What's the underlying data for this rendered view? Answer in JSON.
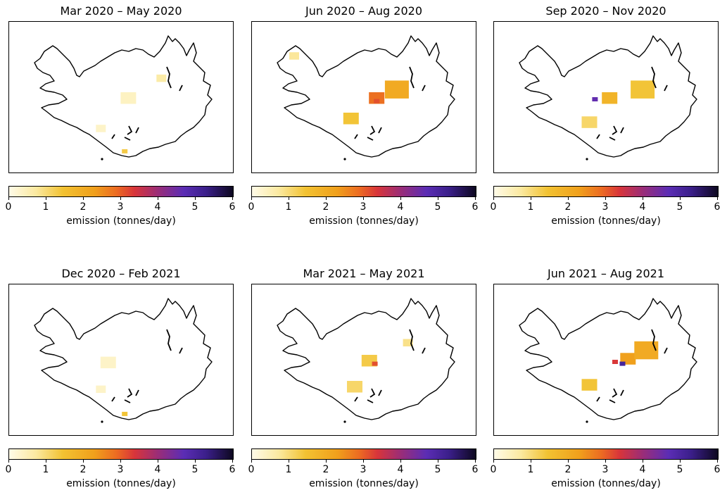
{
  "figure": {
    "colorbar": {
      "ticks": [
        "0",
        "1",
        "2",
        "3",
        "4",
        "5",
        "6"
      ],
      "label": "emission (tonnes/day)",
      "range": [
        0,
        6
      ],
      "colormap": [
        "#fffbe8",
        "#fbe9a0",
        "#f2c232",
        "#f0a01c",
        "#ec6b22",
        "#d8353a",
        "#9d2d75",
        "#5b2db5",
        "#3b1f8a",
        "#0d0820"
      ]
    },
    "panels": [
      {
        "title": "Mar 2020 – May 2020",
        "hotspots": [
          {
            "lon": -18.5,
            "lat": 64.85,
            "value": 0.35,
            "size": 2
          },
          {
            "lon": -16.7,
            "lat": 65.4,
            "value": 0.6,
            "size": 1
          },
          {
            "lon": -20.0,
            "lat": 64.05,
            "value": 0.3,
            "size": 1
          },
          {
            "lon": -18.7,
            "lat": 63.45,
            "value": 1.2,
            "size": 0
          }
        ]
      },
      {
        "title": "Jun 2020 – Aug 2020",
        "hotspots": [
          {
            "lon": -18.2,
            "lat": 64.85,
            "value": 2.6,
            "size": 2
          },
          {
            "lon": -17.1,
            "lat": 65.05,
            "value": 1.8,
            "size": 3
          },
          {
            "lon": -19.6,
            "lat": 64.3,
            "value": 1.3,
            "size": 2
          },
          {
            "lon": -22.7,
            "lat": 66.0,
            "value": 0.7,
            "size": 1
          },
          {
            "lon": -18.2,
            "lat": 64.8,
            "value": 3.0,
            "size": 0
          }
        ]
      },
      {
        "title": "Sep 2020 – Nov 2020",
        "hotspots": [
          {
            "lon": -18.7,
            "lat": 64.85,
            "value": 1.6,
            "size": 2
          },
          {
            "lon": -16.9,
            "lat": 65.05,
            "value": 1.3,
            "size": 3
          },
          {
            "lon": -19.8,
            "lat": 64.2,
            "value": 1.0,
            "size": 2
          },
          {
            "lon": -19.5,
            "lat": 64.85,
            "value": 4.6,
            "size": 0
          }
        ]
      },
      {
        "title": "Dec 2020 – Feb 2021",
        "hotspots": [
          {
            "lon": -19.6,
            "lat": 64.8,
            "value": 0.3,
            "size": 2
          },
          {
            "lon": -20.0,
            "lat": 64.1,
            "value": 0.3,
            "size": 1
          },
          {
            "lon": -18.7,
            "lat": 63.45,
            "value": 1.3,
            "size": 0
          }
        ]
      },
      {
        "title": "Mar 2021 – May 2021",
        "hotspots": [
          {
            "lon": -18.6,
            "lat": 64.85,
            "value": 1.2,
            "size": 2
          },
          {
            "lon": -19.4,
            "lat": 64.15,
            "value": 1.0,
            "size": 2
          },
          {
            "lon": -16.5,
            "lat": 65.35,
            "value": 0.8,
            "size": 1
          },
          {
            "lon": -18.3,
            "lat": 64.8,
            "value": 3.0,
            "size": 0
          }
        ]
      },
      {
        "title": "Jun 2021 – Aug 2021",
        "hotspots": [
          {
            "lon": -17.7,
            "lat": 64.9,
            "value": 2.0,
            "size": 2
          },
          {
            "lon": -16.7,
            "lat": 65.1,
            "value": 1.8,
            "size": 3
          },
          {
            "lon": -19.8,
            "lat": 64.2,
            "value": 1.3,
            "size": 2
          },
          {
            "lon": -18.4,
            "lat": 64.85,
            "value": 3.3,
            "size": 0
          },
          {
            "lon": -18.0,
            "lat": 64.8,
            "value": 5.1,
            "size": 0
          }
        ]
      }
    ]
  }
}
